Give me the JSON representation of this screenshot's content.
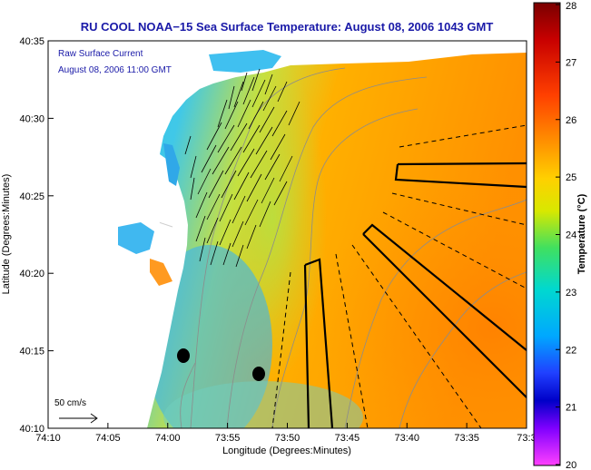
{
  "title": "RU COOL  NOAA−15  Sea Surface Temperature:  August 08, 2006 1043 GMT",
  "overlay": {
    "line1": "Raw Surface Current",
    "line2": "August 08, 2006 11:00 GMT"
  },
  "scale_label": "50 cm/s",
  "axes": {
    "xlabel": "Longitude (Degrees:Minutes)",
    "ylabel": "Latitude (Degrees:Minutes)",
    "x_ticks": [
      "74:10",
      "74:05",
      "74:00",
      "73:55",
      "73:50",
      "73:45",
      "73:40",
      "73:35",
      "73:3"
    ],
    "y_ticks": [
      "40:35",
      "40:30",
      "40:25",
      "40:20",
      "40:15",
      "40:10"
    ]
  },
  "colorbar": {
    "label": "Temperature (°C)",
    "ticks": [
      "28",
      "27",
      "26",
      "25",
      "24",
      "23",
      "22",
      "21",
      "20"
    ],
    "range": [
      20,
      28
    ]
  },
  "colors": {
    "title": "#1a1aa8",
    "land": "#ffffff",
    "cold": "#29a6ff",
    "warm": "#ff8c00",
    "contour": "#8c8c8c",
    "vector": "#000000"
  },
  "symbols": {
    "vectors": "current-arrows",
    "tracks": "dashed-and-solid-transects",
    "markers": "black-dots"
  }
}
